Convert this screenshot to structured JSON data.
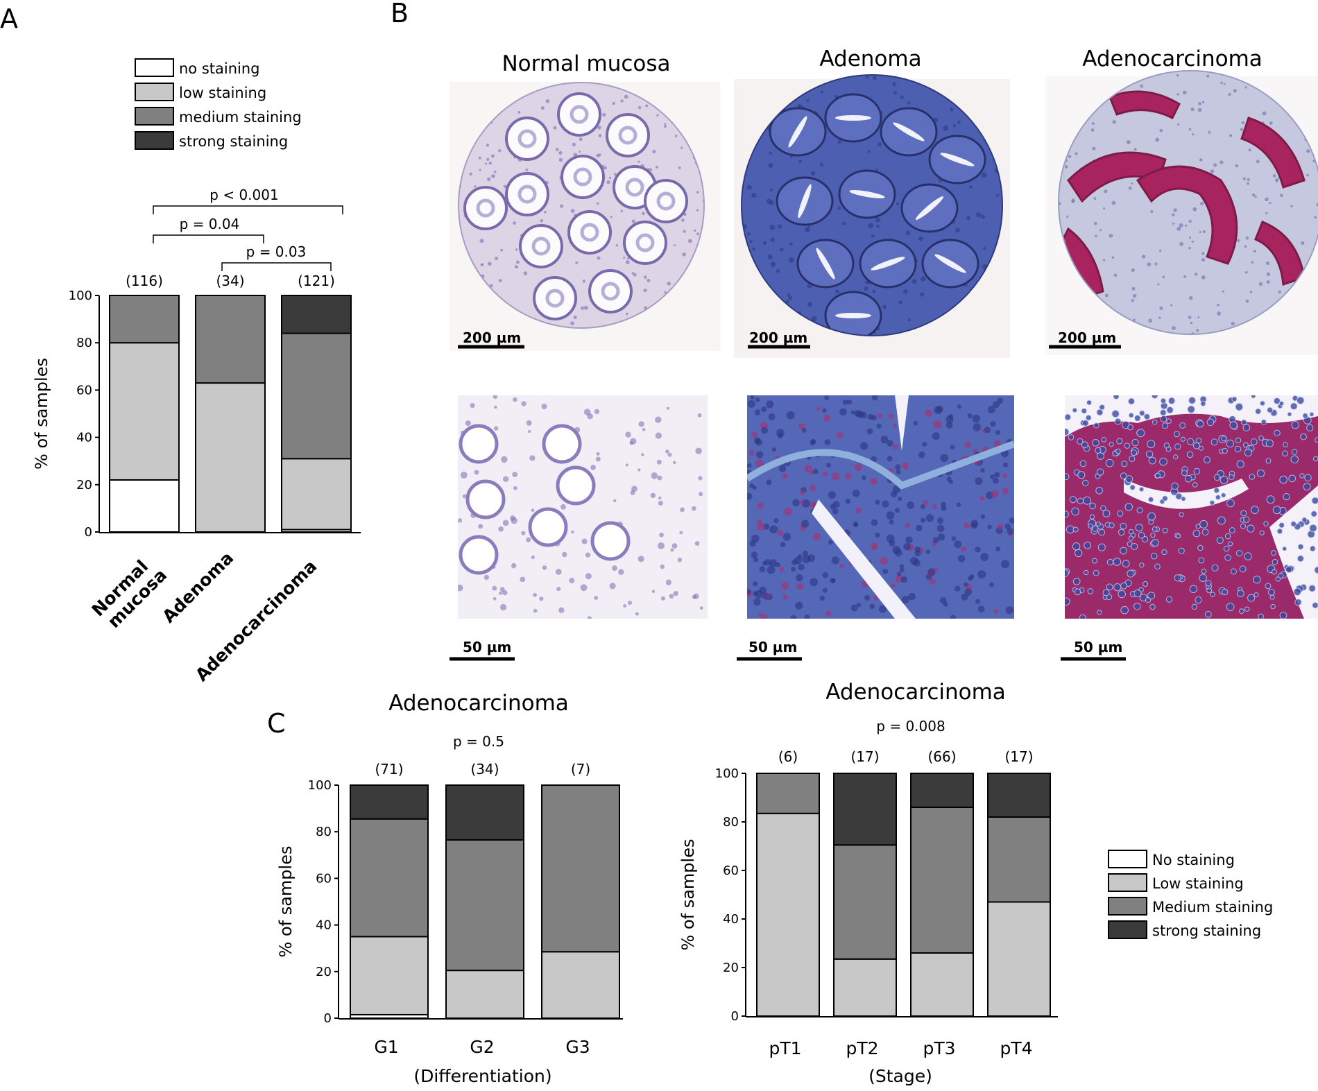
{
  "panels": {
    "a": "A",
    "b": "B",
    "c": "C"
  },
  "colors": {
    "no": "#ffffff",
    "low": "#c8c8c8",
    "medium": "#808080",
    "strong": "#3b3b3b"
  },
  "panel_b": {
    "titles": [
      "Normal mucosa",
      "Adenoma",
      "Adenocarcinoma"
    ],
    "scale_large": "200 µm",
    "scale_small": "50 µm"
  },
  "chart_data": [
    {
      "type": "bar",
      "stacked": true,
      "panel": "A",
      "categories": [
        "Normal mucosa",
        "Adenoma",
        "Adenocarcinoma"
      ],
      "n": [
        "(116)",
        "(34)",
        "(121)"
      ],
      "legend": [
        "no staining",
        "low staining",
        "medium staining",
        "strong staining"
      ],
      "legend_position": "top",
      "series": [
        {
          "name": "no staining",
          "values": [
            22,
            0,
            1
          ]
        },
        {
          "name": "low staining",
          "values": [
            58,
            63,
            30
          ]
        },
        {
          "name": "medium staining",
          "values": [
            20,
            37,
            53
          ]
        },
        {
          "name": "strong staining",
          "values": [
            0,
            0,
            16
          ]
        }
      ],
      "ylabel": "% of samples",
      "xlabel": "",
      "ylim": [
        0,
        100
      ],
      "yticks": [
        "0",
        "20",
        "40",
        "60",
        "80",
        "100"
      ],
      "comparisons": [
        {
          "from": 0,
          "to": 2,
          "label": "p < 0.001"
        },
        {
          "from": 0,
          "to": 1,
          "label": "p = 0.04"
        },
        {
          "from": 1,
          "to": 2,
          "label": "p = 0.03"
        }
      ]
    },
    {
      "type": "bar",
      "stacked": true,
      "panel": "C",
      "title": "Adenocarcinoma",
      "pvalue": "p = 0.5",
      "categories": [
        "G1",
        "G2",
        "G3"
      ],
      "n": [
        "(71)",
        "(34)",
        "(7)"
      ],
      "series": [
        {
          "name": "No staining",
          "values": [
            1.5,
            0,
            0
          ]
        },
        {
          "name": "Low staining",
          "values": [
            33.5,
            20.5,
            28.5
          ]
        },
        {
          "name": "Medium staining",
          "values": [
            50.5,
            56,
            71.5
          ]
        },
        {
          "name": "strong staining",
          "values": [
            14.5,
            23.5,
            0
          ]
        }
      ],
      "ylabel": "% of samples",
      "xlabel": "(Differentiation)",
      "ylim": [
        0,
        100
      ],
      "yticks": [
        "0",
        "20",
        "40",
        "60",
        "80",
        "100"
      ]
    },
    {
      "type": "bar",
      "stacked": true,
      "panel": "C",
      "title": "Adenocarcinoma",
      "pvalue": "p = 0.008",
      "categories": [
        "pT1",
        "pT2",
        "pT3",
        "pT4"
      ],
      "n": [
        "(6)",
        "(17)",
        "(66)",
        "(17)"
      ],
      "legend": [
        "No staining",
        "Low staining",
        "Medium staining",
        "strong staining"
      ],
      "legend_position": "right",
      "series": [
        {
          "name": "No staining",
          "values": [
            0,
            0,
            0,
            0
          ]
        },
        {
          "name": "Low staining",
          "values": [
            83.5,
            23.5,
            26,
            47
          ]
        },
        {
          "name": "Medium staining",
          "values": [
            16.5,
            47,
            60,
            35
          ]
        },
        {
          "name": "strong staining",
          "values": [
            0,
            29.5,
            14,
            18
          ]
        }
      ],
      "ylabel": "% of samples",
      "xlabel": "(Stage)",
      "ylim": [
        0,
        100
      ],
      "yticks": [
        "0",
        "20",
        "40",
        "60",
        "80",
        "100"
      ]
    }
  ]
}
